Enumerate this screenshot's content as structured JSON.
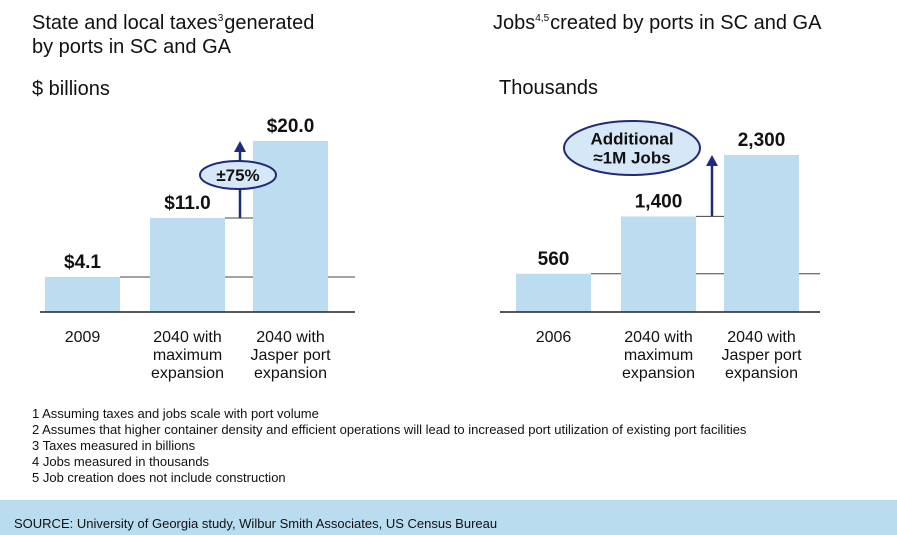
{
  "chart_data": [
    {
      "type": "bar",
      "title": [
        "State and local taxes",
        "3",
        "generated",
        "by ports in SC and GA"
      ],
      "unit": "$ billions",
      "categories": [
        [
          "2009"
        ],
        [
          "2040 with",
          "maximum",
          "expansion"
        ],
        [
          "2040 with",
          "Jasper port",
          "expansion"
        ]
      ],
      "values": [
        4.1,
        11.0,
        20.0
      ],
      "value_labels": [
        "$4.1",
        "$11.0",
        "$20.0"
      ],
      "annotation": [
        "±75%"
      ],
      "color": "#bcdcf0"
    },
    {
      "type": "bar",
      "title": [
        "Jobs",
        "4,5",
        "created by ports in SC and GA"
      ],
      "unit": "Thousands",
      "categories": [
        [
          "2006"
        ],
        [
          "2040 with",
          "maximum",
          "expansion"
        ],
        [
          "2040 with",
          "Jasper port",
          "expansion"
        ]
      ],
      "values": [
        560,
        1400,
        2300
      ],
      "value_labels": [
        "560",
        "1,400",
        "2,300"
      ],
      "annotation": [
        "Additional",
        "≈1M Jobs"
      ],
      "color": "#bcdcf0"
    }
  ],
  "footnotes": [
    "1 Assuming taxes and jobs scale with port volume",
    "2 Assumes that higher container density and efficient operations will lead to increased port utilization of existing port facilities",
    "3 Taxes measured in billions",
    "4 Jobs measured in thousands",
    "5 Job creation does not include construction"
  ],
  "source": "SOURCE: University of Georgia study,  Wilbur Smith Associates, US Census Bureau"
}
